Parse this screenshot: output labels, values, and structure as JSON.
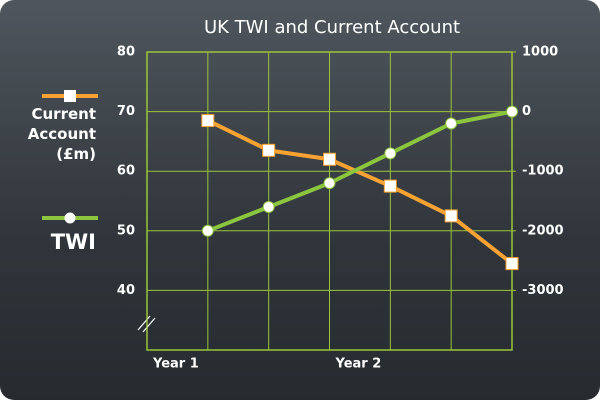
{
  "chart_data": {
    "type": "line",
    "title": "UK TWI and Current Account",
    "x": [
      1,
      2,
      3,
      4,
      5,
      6
    ],
    "xlim": [
      0,
      6
    ],
    "xticks": [
      0,
      1,
      2,
      3,
      4,
      5,
      6
    ],
    "x_labels": [
      {
        "value": 0,
        "label": "Year 1"
      },
      {
        "value": 3,
        "label": "Year 2"
      }
    ],
    "series": [
      {
        "name": "Current Account (£m)",
        "color": "#f7a233",
        "axis": "y2",
        "marker": "square",
        "values": [
          -150,
          -650,
          -800,
          -1250,
          -1750,
          -2550
        ]
      },
      {
        "name": "TWI",
        "color": "#8cc63f",
        "marker": "circle",
        "values": [
          50,
          54,
          58,
          63,
          68,
          70
        ]
      }
    ],
    "ylim": [
      30,
      80
    ],
    "yticks": [
      40,
      50,
      60,
      70,
      80
    ],
    "y2lim": [
      -4000,
      1000
    ],
    "y2ticks": [
      -3000,
      -2000,
      -1000,
      0,
      1000
    ],
    "grid": true
  }
}
